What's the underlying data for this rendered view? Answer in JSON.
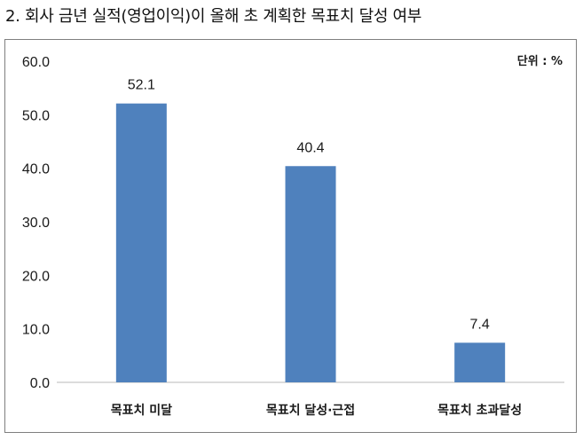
{
  "heading": "2. 회사 금년 실적(영업이익)이 올해 초 계획한 목표치 달성 여부",
  "chart_data": {
    "type": "bar",
    "categories": [
      "목표치 미달",
      "목표치 달성·근접",
      "목표치 초과달성"
    ],
    "values": [
      52.1,
      40.4,
      7.4
    ],
    "data_labels": [
      "52.1",
      "40.4",
      "7.4"
    ],
    "unit_label": "단위 : %",
    "ylim": [
      0,
      60
    ],
    "yticks": [
      "0.0",
      "10.0",
      "20.0",
      "30.0",
      "40.0",
      "50.0",
      "60.0"
    ],
    "grid": false,
    "bar_color": "#4f81bd"
  }
}
